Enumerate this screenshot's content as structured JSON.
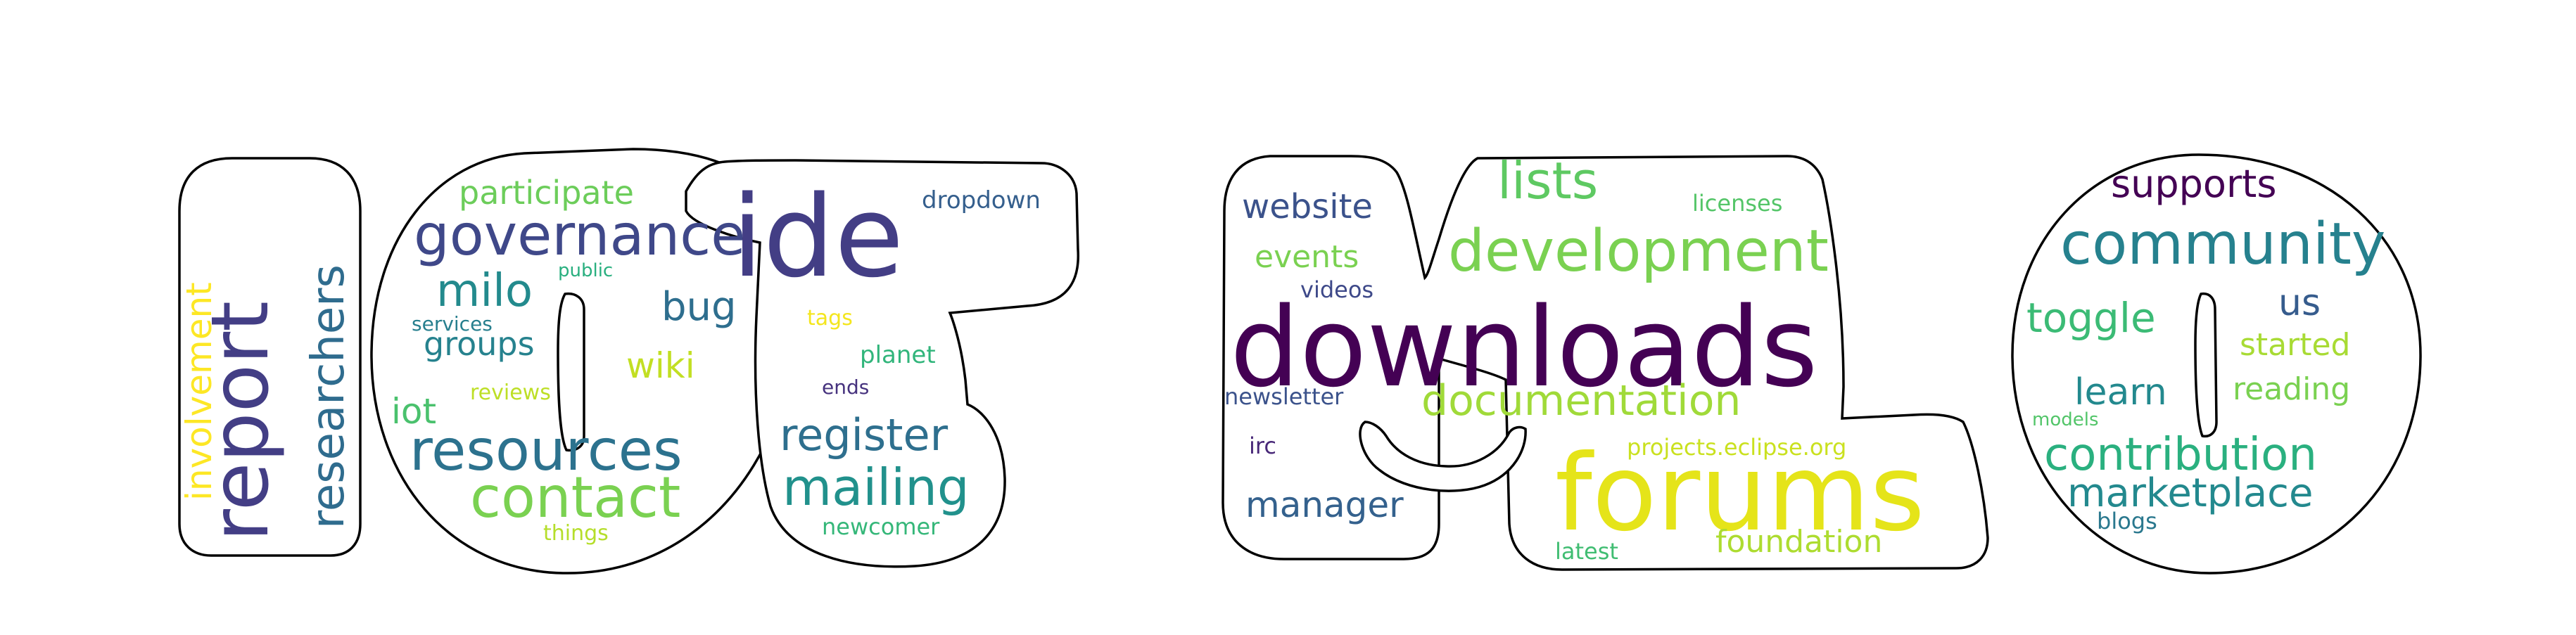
{
  "colors": {
    "background": "#ffffff",
    "outline": "#000000"
  },
  "word_cloud": {
    "shape_letters": "iot yo",
    "words": [
      {
        "text": "ide",
        "color": "#433e85"
      },
      {
        "text": "report",
        "color": "#433e85"
      },
      {
        "text": "governance",
        "color": "#3f4889"
      },
      {
        "text": "resources",
        "color": "#2c728e"
      },
      {
        "text": "contact",
        "color": "#7ad151"
      },
      {
        "text": "mailing",
        "color": "#21918c"
      },
      {
        "text": "register",
        "color": "#2e6f8e"
      },
      {
        "text": "researchers",
        "color": "#2f6c8e"
      },
      {
        "text": "involvement",
        "color": "#fde725"
      },
      {
        "text": "milo",
        "color": "#238a8d"
      },
      {
        "text": "participate",
        "color": "#6ccd5a"
      },
      {
        "text": "bug",
        "color": "#2e6e8e"
      },
      {
        "text": "groups",
        "color": "#26828e"
      },
      {
        "text": "wiki",
        "color": "#c2df23"
      },
      {
        "text": "iot",
        "color": "#4ac16d"
      },
      {
        "text": "dropdown",
        "color": "#355f8d"
      },
      {
        "text": "planet",
        "color": "#31b57b"
      },
      {
        "text": "tags",
        "color": "#f4e61e"
      },
      {
        "text": "ends",
        "color": "#46327e"
      },
      {
        "text": "newcomer",
        "color": "#35b779"
      },
      {
        "text": "public",
        "color": "#29af7f"
      },
      {
        "text": "services",
        "color": "#277f8e"
      },
      {
        "text": "reviews",
        "color": "#bddf26"
      },
      {
        "text": "things",
        "color": "#b5de2b"
      },
      {
        "text": "downloads",
        "color": "#440154"
      },
      {
        "text": "forums",
        "color": "#e5e419"
      },
      {
        "text": "development",
        "color": "#7ad151"
      },
      {
        "text": "documentation",
        "color": "#a0da39"
      },
      {
        "text": "lists",
        "color": "#5ec962"
      },
      {
        "text": "website",
        "color": "#3b528b"
      },
      {
        "text": "events",
        "color": "#7ad151"
      },
      {
        "text": "videos",
        "color": "#3e4989"
      },
      {
        "text": "newsletter",
        "color": "#3b528b"
      },
      {
        "text": "irc",
        "color": "#482878"
      },
      {
        "text": "manager",
        "color": "#34618d"
      },
      {
        "text": "licenses",
        "color": "#54c568"
      },
      {
        "text": "projects.eclipse.org",
        "color": "#cae11f"
      },
      {
        "text": "foundation",
        "color": "#addc30"
      },
      {
        "text": "latest",
        "color": "#40bd72"
      },
      {
        "text": "supports",
        "color": "#440154"
      },
      {
        "text": "community",
        "color": "#26818e"
      },
      {
        "text": "toggle",
        "color": "#3bbb75"
      },
      {
        "text": "us",
        "color": "#365c8d"
      },
      {
        "text": "started",
        "color": "#a8db34"
      },
      {
        "text": "learn",
        "color": "#23898e"
      },
      {
        "text": "reading",
        "color": "#7ad151"
      },
      {
        "text": "models",
        "color": "#52c569"
      },
      {
        "text": "contribution",
        "color": "#2ab07f"
      },
      {
        "text": "marketplace",
        "color": "#23898e"
      },
      {
        "text": "blogs",
        "color": "#2a788e"
      }
    ]
  }
}
